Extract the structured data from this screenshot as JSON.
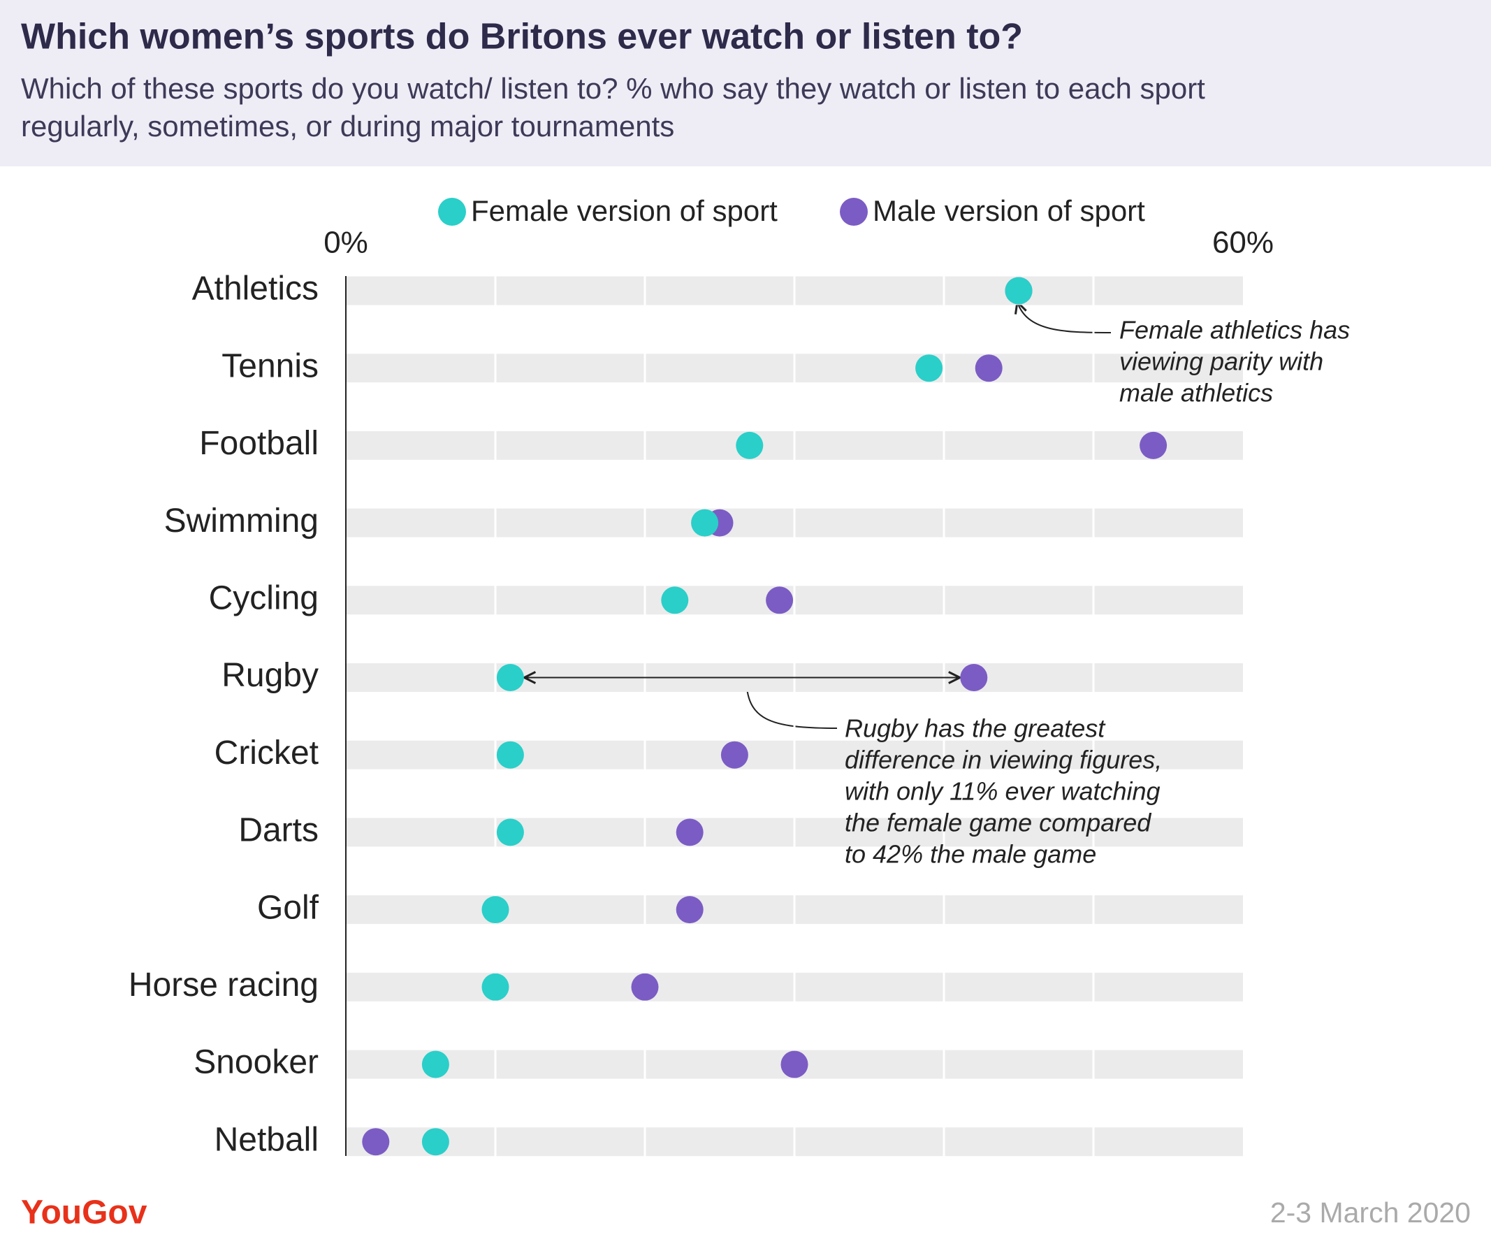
{
  "chart_data": {
    "type": "dot",
    "title": "Which women’s sports do Britons ever watch or listen to?",
    "subtitle": [
      "Which of these sports do you watch/ listen to? % who say they watch or listen to each sport",
      "regularly, sometimes, or during major tournaments"
    ],
    "categories": [
      "Athletics",
      "Tennis",
      "Football",
      "Swimming",
      "Cycling",
      "Rugby",
      "Cricket",
      "Darts",
      "Golf",
      "Horse racing",
      "Snooker",
      "Netball"
    ],
    "series": [
      {
        "name": "Female version of sport",
        "color": "#2acfc9",
        "values": [
          45,
          39,
          27,
          24,
          22,
          11,
          11,
          11,
          10,
          10,
          6,
          6
        ]
      },
      {
        "name": "Male version of sport",
        "color": "#7b5cc4",
        "values": [
          45,
          43,
          54,
          25,
          29,
          42,
          26,
          23,
          23,
          20,
          30,
          2
        ]
      }
    ],
    "xlim": [
      0,
      60
    ],
    "xticks": [
      {
        "value": 0,
        "label": "0%"
      },
      {
        "value": 60,
        "label": "60%"
      }
    ],
    "xgrid": [
      10,
      20,
      30,
      40,
      50
    ],
    "annotations": [
      {
        "lines": [
          "Female athletics has",
          "viewing parity with",
          "male athletics"
        ]
      },
      {
        "lines": [
          "Rugby has the greatest",
          "difference in viewing figures,",
          "with only 11% ever watching",
          "the female game compared",
          "to 42% the male game"
        ]
      }
    ],
    "source": "YouGov",
    "date": "2-3 March 2020"
  }
}
